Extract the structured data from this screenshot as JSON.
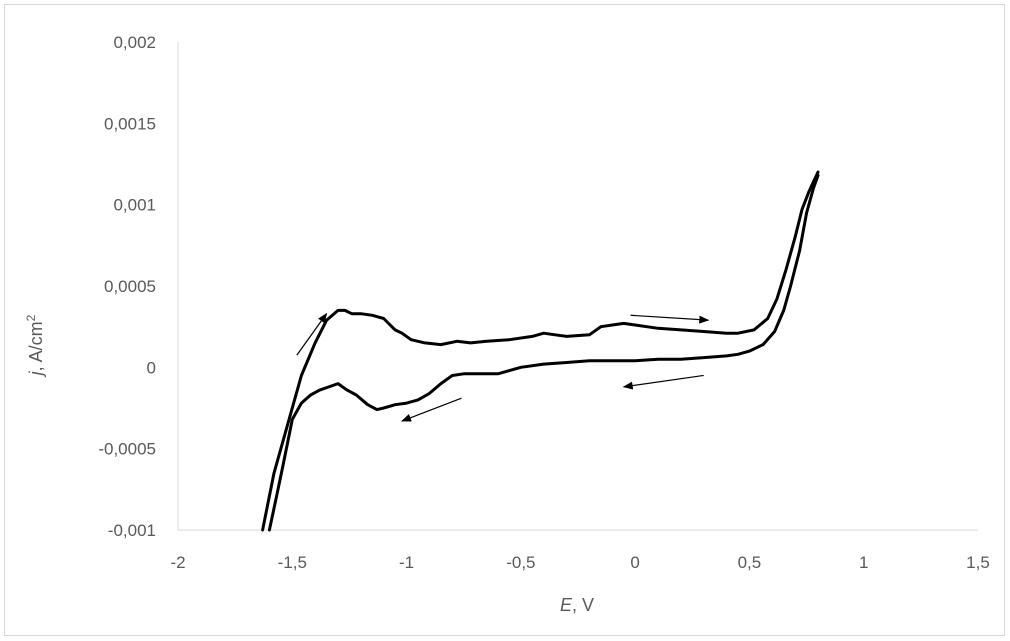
{
  "chart_data": {
    "type": "line",
    "title": "",
    "xlabel": {
      "var": "E",
      "rest": ", V"
    },
    "ylabel": {
      "var": "j",
      "rest": ", A/cm",
      "sup": "2"
    },
    "xlim": [
      -2,
      1.5
    ],
    "ylim": [
      -0.001,
      0.002
    ],
    "x_ticks": [
      -2,
      -1.5,
      -1,
      -0.5,
      0,
      0.5,
      1,
      1.5
    ],
    "y_ticks": [
      -0.001,
      -0.0005,
      0,
      0.0005,
      0.001,
      0.0015,
      0.002
    ],
    "x_tick_labels": [
      "-2",
      "-1,5",
      "-1",
      "-0,5",
      "0",
      "0,5",
      "1",
      "1,5"
    ],
    "y_tick_labels": [
      "-0,001",
      "-0,0005",
      "0",
      "0,0005",
      "0,001",
      "0,0015",
      "0,002"
    ],
    "grid": false,
    "line_color": "#000000",
    "series": [
      {
        "x": [
          -1.63,
          -1.58,
          -1.52,
          -1.46,
          -1.4,
          -1.35,
          -1.3,
          -1.27,
          -1.24,
          -1.2,
          -1.15,
          -1.1,
          -1.05,
          -1.02,
          -0.98,
          -0.92,
          -0.85,
          -0.78,
          -0.72,
          -0.65,
          -0.55,
          -0.45,
          -0.4,
          -0.35,
          -0.3,
          -0.2,
          -0.15,
          -0.1,
          -0.05,
          0.0,
          0.1,
          0.2,
          0.3,
          0.4,
          0.45,
          0.52,
          0.58,
          0.62,
          0.66,
          0.7,
          0.73,
          0.76,
          0.78,
          0.8
        ],
        "y": [
          -0.001,
          -0.00065,
          -0.00035,
          -5e-05,
          0.00015,
          0.00029,
          0.00035,
          0.00035,
          0.00033,
          0.00033,
          0.00032,
          0.0003,
          0.00023,
          0.00021,
          0.00017,
          0.00015,
          0.00014,
          0.00016,
          0.00015,
          0.00016,
          0.00017,
          0.00019,
          0.00021,
          0.0002,
          0.00019,
          0.0002,
          0.00025,
          0.00026,
          0.00027,
          0.00026,
          0.00024,
          0.00023,
          0.00022,
          0.00021,
          0.00021,
          0.00023,
          0.0003,
          0.00042,
          0.0006,
          0.0008,
          0.00097,
          0.00108,
          0.00114,
          0.0012
        ]
      },
      {
        "x": [
          0.8,
          0.78,
          0.75,
          0.72,
          0.68,
          0.65,
          0.61,
          0.56,
          0.5,
          0.45,
          0.4,
          0.3,
          0.2,
          0.1,
          0.0,
          -0.1,
          -0.2,
          -0.3,
          -0.4,
          -0.5,
          -0.55,
          -0.6,
          -0.7,
          -0.75,
          -0.8,
          -0.85,
          -0.9,
          -0.95,
          -1.0,
          -1.05,
          -1.1,
          -1.13,
          -1.17,
          -1.22,
          -1.26,
          -1.3,
          -1.34,
          -1.38,
          -1.42,
          -1.46,
          -1.5,
          -1.54,
          -1.57,
          -1.6
        ],
        "y": [
          0.00118,
          0.0011,
          0.00095,
          0.00072,
          0.0005,
          0.00035,
          0.00022,
          0.00014,
          0.0001,
          8e-05,
          7e-05,
          6e-05,
          5e-05,
          5e-05,
          4e-05,
          4e-05,
          4e-05,
          3e-05,
          2e-05,
          0.0,
          -2e-05,
          -4e-05,
          -4e-05,
          -4e-05,
          -5e-05,
          -0.0001,
          -0.00016,
          -0.0002,
          -0.00022,
          -0.00023,
          -0.00025,
          -0.00026,
          -0.00023,
          -0.00017,
          -0.00014,
          -0.0001,
          -0.00012,
          -0.00014,
          -0.00017,
          -0.00022,
          -0.00032,
          -0.0006,
          -0.0008,
          -0.001
        ]
      }
    ],
    "annotations": [
      {
        "type": "arrow",
        "from": [
          -1.48,
          7.5e-05
        ],
        "to": [
          -1.35,
          0.00033
        ]
      },
      {
        "type": "arrow",
        "from": [
          -0.02,
          0.00032
        ],
        "to": [
          0.32,
          0.00029
        ]
      },
      {
        "type": "arrow",
        "from": [
          0.3,
          -5e-05
        ],
        "to": [
          -0.05,
          -0.00012
        ]
      },
      {
        "type": "arrow",
        "from": [
          -0.76,
          -0.00019
        ],
        "to": [
          -1.02,
          -0.00033
        ]
      }
    ]
  }
}
